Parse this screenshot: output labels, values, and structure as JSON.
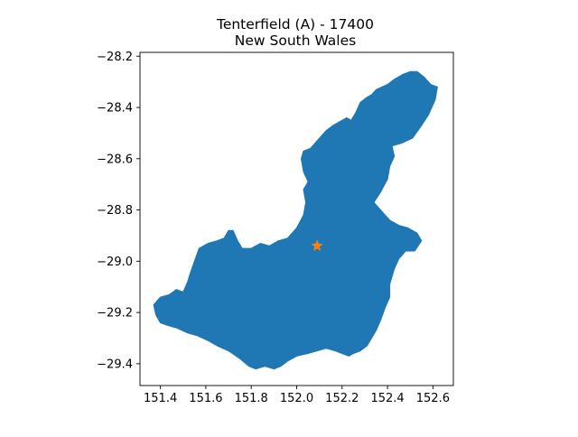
{
  "title": {
    "line1": "Tenterfield (A) - 17400",
    "line2": "New South Wales"
  },
  "colors": {
    "region_fill": "#1f77b4",
    "marker_fill": "#ff7f0e",
    "axis": "#000000"
  },
  "chart_data": {
    "type": "map",
    "title": "Tenterfield (A) - 17400\nNew South Wales",
    "xlim": [
      151.31,
      152.69
    ],
    "ylim": [
      -29.485,
      -28.185
    ],
    "x_ticks": [
      {
        "value": 151.4,
        "label": "151.4"
      },
      {
        "value": 151.6,
        "label": "151.6"
      },
      {
        "value": 151.8,
        "label": "151.8"
      },
      {
        "value": 152.0,
        "label": "152.0"
      },
      {
        "value": 152.2,
        "label": "152.2"
      },
      {
        "value": 152.4,
        "label": "152.4"
      },
      {
        "value": 152.6,
        "label": "152.6"
      }
    ],
    "y_ticks": [
      {
        "value": -28.2,
        "label": "−28.2"
      },
      {
        "value": -28.4,
        "label": "−28.4"
      },
      {
        "value": -28.6,
        "label": "−28.6"
      },
      {
        "value": -28.8,
        "label": "−28.8"
      },
      {
        "value": -29.0,
        "label": "−29.0"
      },
      {
        "value": -29.2,
        "label": "−29.2"
      },
      {
        "value": -29.4,
        "label": "−29.4"
      }
    ],
    "region_outline": [
      [
        151.37,
        -29.17
      ],
      [
        151.4,
        -29.14
      ],
      [
        151.44,
        -29.13
      ],
      [
        151.47,
        -29.11
      ],
      [
        151.5,
        -29.12
      ],
      [
        151.52,
        -29.08
      ],
      [
        151.53,
        -29.05
      ],
      [
        151.55,
        -29.0
      ],
      [
        151.57,
        -28.95
      ],
      [
        151.61,
        -28.93
      ],
      [
        151.65,
        -28.92
      ],
      [
        151.68,
        -28.91
      ],
      [
        151.7,
        -28.88
      ],
      [
        151.72,
        -28.88
      ],
      [
        151.74,
        -28.92
      ],
      [
        151.76,
        -28.95
      ],
      [
        151.8,
        -28.95
      ],
      [
        151.84,
        -28.93
      ],
      [
        151.88,
        -28.94
      ],
      [
        151.92,
        -28.92
      ],
      [
        151.96,
        -28.91
      ],
      [
        152.0,
        -28.87
      ],
      [
        152.03,
        -28.82
      ],
      [
        152.04,
        -28.77
      ],
      [
        152.03,
        -28.72
      ],
      [
        152.05,
        -28.69
      ],
      [
        152.03,
        -28.65
      ],
      [
        152.02,
        -28.6
      ],
      [
        152.03,
        -28.57
      ],
      [
        152.06,
        -28.56
      ],
      [
        152.1,
        -28.52
      ],
      [
        152.13,
        -28.49
      ],
      [
        152.16,
        -28.47
      ],
      [
        152.2,
        -28.45
      ],
      [
        152.22,
        -28.44
      ],
      [
        152.24,
        -28.45
      ],
      [
        152.26,
        -28.42
      ],
      [
        152.28,
        -28.38
      ],
      [
        152.31,
        -28.36
      ],
      [
        152.33,
        -28.35
      ],
      [
        152.35,
        -28.33
      ],
      [
        152.4,
        -28.31
      ],
      [
        152.43,
        -28.29
      ],
      [
        152.47,
        -28.27
      ],
      [
        152.5,
        -28.26
      ],
      [
        152.53,
        -28.26
      ],
      [
        152.56,
        -28.28
      ],
      [
        152.59,
        -28.31
      ],
      [
        152.62,
        -28.32
      ],
      [
        152.61,
        -28.37
      ],
      [
        152.58,
        -28.43
      ],
      [
        152.55,
        -28.47
      ],
      [
        152.51,
        -28.52
      ],
      [
        152.46,
        -28.54
      ],
      [
        152.42,
        -28.55
      ],
      [
        152.43,
        -28.59
      ],
      [
        152.41,
        -28.63
      ],
      [
        152.4,
        -28.68
      ],
      [
        152.37,
        -28.73
      ],
      [
        152.34,
        -28.77
      ],
      [
        152.37,
        -28.8
      ],
      [
        152.41,
        -28.84
      ],
      [
        152.45,
        -28.86
      ],
      [
        152.49,
        -28.87
      ],
      [
        152.53,
        -28.89
      ],
      [
        152.55,
        -28.92
      ],
      [
        152.52,
        -28.96
      ],
      [
        152.48,
        -28.96
      ],
      [
        152.45,
        -28.99
      ],
      [
        152.43,
        -29.03
      ],
      [
        152.41,
        -29.09
      ],
      [
        152.41,
        -29.14
      ],
      [
        152.39,
        -29.18
      ],
      [
        152.37,
        -29.23
      ],
      [
        152.35,
        -29.27
      ],
      [
        152.33,
        -29.3
      ],
      [
        152.31,
        -29.33
      ],
      [
        152.28,
        -29.35
      ],
      [
        152.25,
        -29.36
      ],
      [
        152.23,
        -29.37
      ],
      [
        152.2,
        -29.36
      ],
      [
        152.17,
        -29.35
      ],
      [
        152.13,
        -29.34
      ],
      [
        152.09,
        -29.35
      ],
      [
        152.05,
        -29.36
      ],
      [
        152.0,
        -29.37
      ],
      [
        151.96,
        -29.39
      ],
      [
        151.93,
        -29.41
      ],
      [
        151.9,
        -29.42
      ],
      [
        151.86,
        -29.41
      ],
      [
        151.82,
        -29.42
      ],
      [
        151.79,
        -29.41
      ],
      [
        151.75,
        -29.38
      ],
      [
        151.7,
        -29.35
      ],
      [
        151.65,
        -29.33
      ],
      [
        151.61,
        -29.31
      ],
      [
        151.56,
        -29.29
      ],
      [
        151.52,
        -29.28
      ],
      [
        151.47,
        -29.26
      ],
      [
        151.43,
        -29.25
      ],
      [
        151.4,
        -29.24
      ],
      [
        151.38,
        -29.21
      ]
    ],
    "marker": {
      "lon": 152.09,
      "lat": -28.94,
      "symbol": "star"
    }
  }
}
